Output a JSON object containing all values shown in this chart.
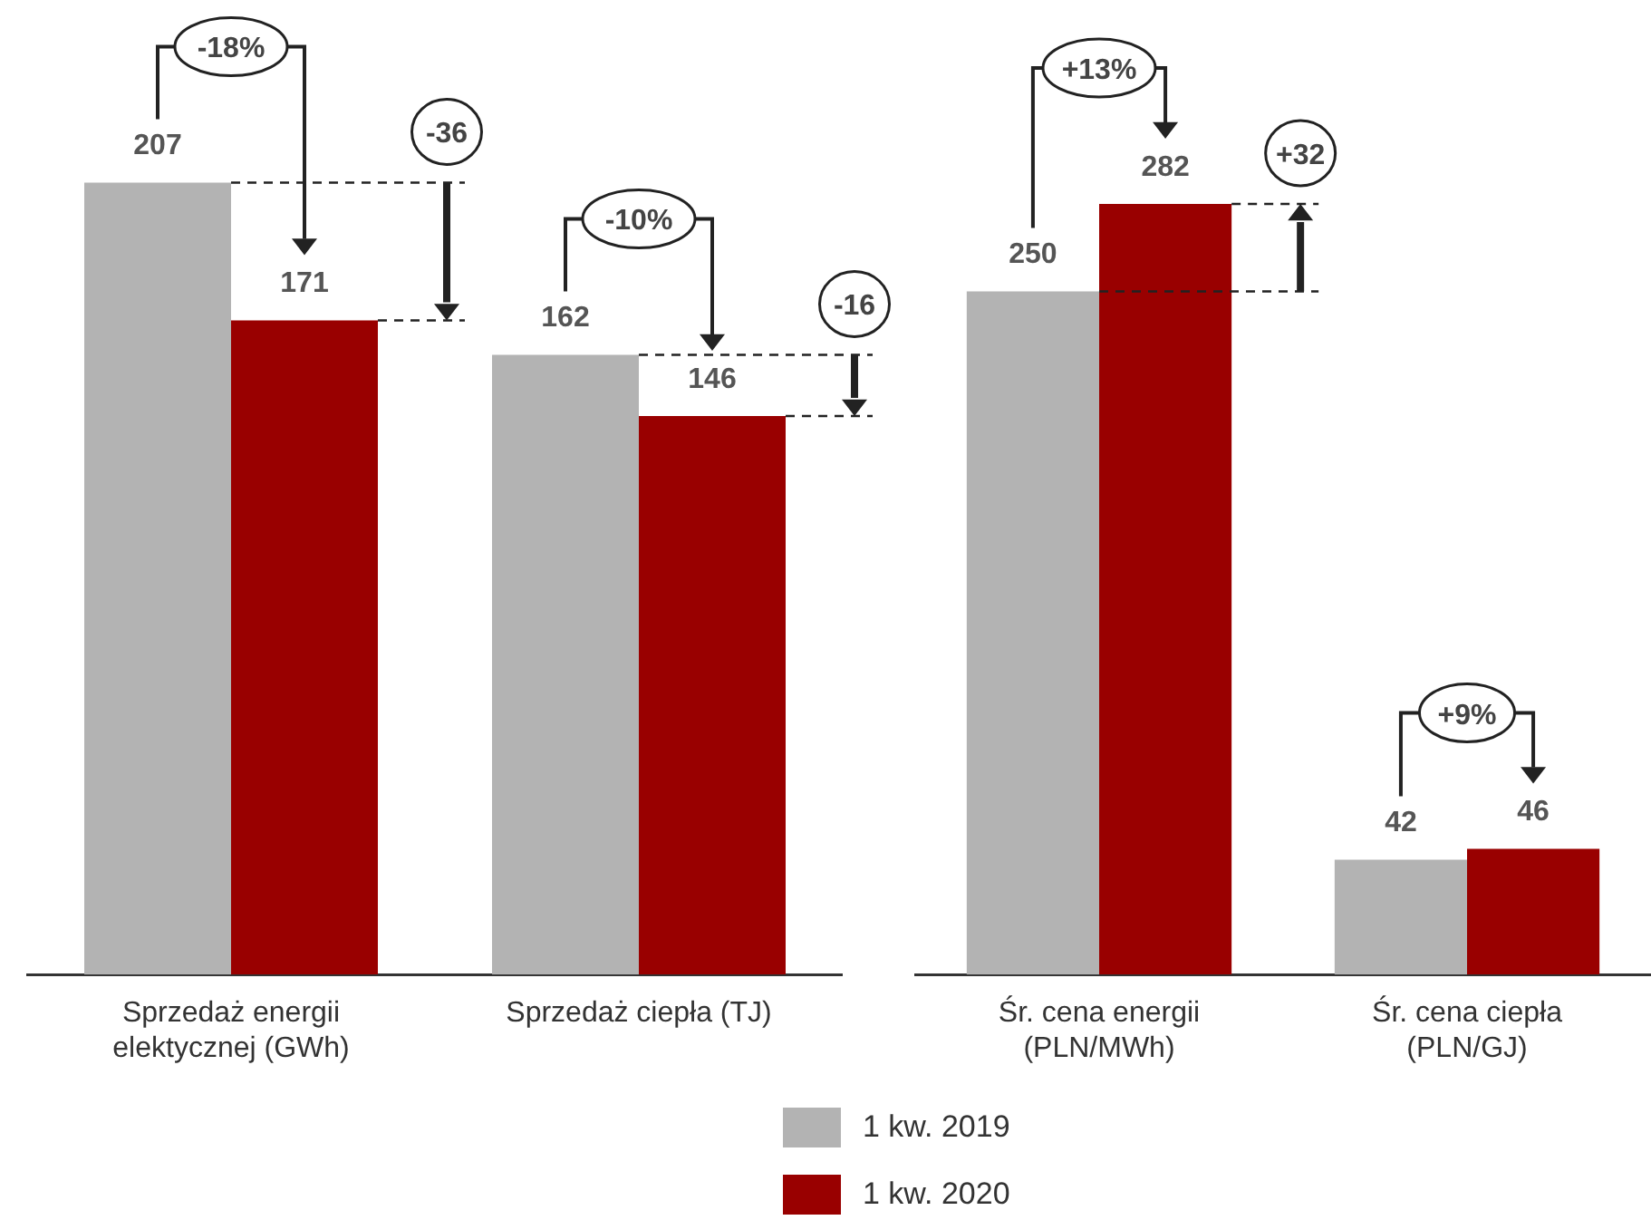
{
  "chart_data": [
    {
      "type": "bar",
      "categories": [
        "Sprzedaż energii elektycznej (GWh)",
        "Sprzedaż ciepła (TJ)"
      ],
      "series": [
        {
          "name": "1 kw. 2019",
          "color": "#b3b3b3",
          "values": [
            207,
            162
          ]
        },
        {
          "name": "1 kw. 2020",
          "color": "#990000",
          "values": [
            171,
            146
          ]
        }
      ],
      "data_labels": true,
      "tick_labels": "x",
      "grid": false,
      "legend": "bottom",
      "annotations": [
        "-18%",
        "-10%",
        "-36",
        "-16"
      ]
    },
    {
      "type": "bar",
      "categories": [
        "Śr. cena energii (PLN/MWh)",
        "Śr. cena ciepła (PLN/GJ)"
      ],
      "series": [
        {
          "name": "1 kw. 2019",
          "color": "#b3b3b3",
          "values": [
            250,
            42
          ]
        },
        {
          "name": "1 kw. 2020",
          "color": "#990000",
          "values": [
            282,
            46
          ]
        }
      ],
      "data_labels": true,
      "tick_labels": "x",
      "grid": false,
      "legend": "bottom",
      "annotations": [
        "+13%",
        "+9%",
        "+32"
      ]
    }
  ]
}
